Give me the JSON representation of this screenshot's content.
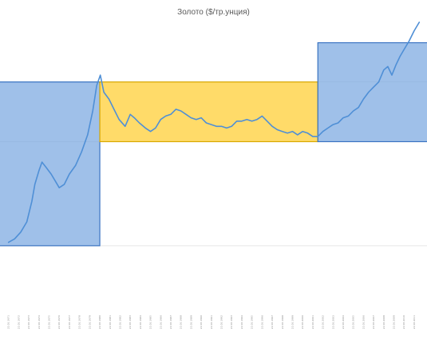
{
  "chart_data": {
    "type": "line",
    "title": "Золото ($/тр.унция)",
    "xlabel": "",
    "ylabel": "",
    "grid": true,
    "legend": "none",
    "colors": {
      "line": "#4f8fd6",
      "band_blue_fill": "#7aa7e0",
      "band_blue_stroke": "#3a73c2",
      "band_yellow_fill": "#ffd54f",
      "band_yellow_stroke": "#d9a800",
      "gridline": "#e6e6e6"
    },
    "x_tick_labels": [
      "22.03.1971",
      "22.03.1972",
      "22.03.1973",
      "22.03.1974",
      "22.03.1975",
      "22.03.1976",
      "22.03.1977",
      "22.03.1978",
      "22.03.1979",
      "22.03.1980",
      "22.03.1981",
      "22.03.1982",
      "22.03.1983",
      "22.03.1984",
      "22.03.1985",
      "22.03.1986",
      "22.03.1987",
      "22.03.1988",
      "22.03.1989",
      "22.03.1990",
      "22.03.1991",
      "22.03.1992",
      "22.03.1993",
      "22.03.1994",
      "22.03.1995",
      "22.03.1996",
      "22.03.1997",
      "22.03.1998",
      "22.03.1999",
      "22.03.2000",
      "22.03.2001",
      "22.03.2002",
      "22.03.2003",
      "22.03.2004",
      "22.03.2005",
      "22.03.2006",
      "22.03.2007",
      "22.03.2008",
      "22.03.2009",
      "22.03.2010",
      "22.03.2011"
    ],
    "series": [
      {
        "values": [
          [
            1971.0,
            0.02
          ],
          [
            1971.6,
            0.04
          ],
          [
            1972.2,
            0.08
          ],
          [
            1972.8,
            0.14
          ],
          [
            1973.3,
            0.26
          ],
          [
            1973.6,
            0.36
          ],
          [
            1974.0,
            0.44
          ],
          [
            1974.3,
            0.49
          ],
          [
            1974.7,
            0.46
          ],
          [
            1975.2,
            0.42
          ],
          [
            1975.6,
            0.38
          ],
          [
            1976.0,
            0.34
          ],
          [
            1976.5,
            0.36
          ],
          [
            1977.0,
            0.42
          ],
          [
            1977.6,
            0.47
          ],
          [
            1978.2,
            0.55
          ],
          [
            1978.8,
            0.65
          ],
          [
            1979.3,
            0.79
          ],
          [
            1979.7,
            0.94
          ],
          [
            1980.05,
            1.0
          ],
          [
            1980.4,
            0.9
          ],
          [
            1980.9,
            0.86
          ],
          [
            1981.4,
            0.8
          ],
          [
            1981.9,
            0.74
          ],
          [
            1982.5,
            0.7
          ],
          [
            1983.0,
            0.77
          ],
          [
            1983.4,
            0.75
          ],
          [
            1983.9,
            0.72
          ],
          [
            1984.5,
            0.69
          ],
          [
            1985.0,
            0.67
          ],
          [
            1985.5,
            0.69
          ],
          [
            1986.0,
            0.74
          ],
          [
            1986.5,
            0.76
          ],
          [
            1987.0,
            0.77
          ],
          [
            1987.5,
            0.8
          ],
          [
            1988.0,
            0.79
          ],
          [
            1988.5,
            0.77
          ],
          [
            1989.0,
            0.75
          ],
          [
            1989.5,
            0.74
          ],
          [
            1990.0,
            0.75
          ],
          [
            1990.5,
            0.72
          ],
          [
            1991.0,
            0.71
          ],
          [
            1991.5,
            0.7
          ],
          [
            1992.0,
            0.7
          ],
          [
            1992.5,
            0.69
          ],
          [
            1993.0,
            0.7
          ],
          [
            1993.5,
            0.73
          ],
          [
            1994.0,
            0.73
          ],
          [
            1994.5,
            0.74
          ],
          [
            1995.0,
            0.73
          ],
          [
            1995.5,
            0.74
          ],
          [
            1996.0,
            0.76
          ],
          [
            1996.5,
            0.73
          ],
          [
            1997.0,
            0.7
          ],
          [
            1997.5,
            0.68
          ],
          [
            1998.0,
            0.67
          ],
          [
            1998.5,
            0.66
          ],
          [
            1999.0,
            0.67
          ],
          [
            1999.5,
            0.65
          ],
          [
            2000.0,
            0.67
          ],
          [
            2000.5,
            0.66
          ],
          [
            2001.0,
            0.64
          ],
          [
            2001.5,
            0.64
          ],
          [
            2002.0,
            0.67
          ],
          [
            2002.5,
            0.69
          ],
          [
            2003.0,
            0.71
          ],
          [
            2003.5,
            0.72
          ],
          [
            2004.0,
            0.75
          ],
          [
            2004.5,
            0.76
          ],
          [
            2005.0,
            0.79
          ],
          [
            2005.5,
            0.81
          ],
          [
            2006.0,
            0.86
          ],
          [
            2006.5,
            0.9
          ],
          [
            2007.0,
            0.93
          ],
          [
            2007.5,
            0.96
          ],
          [
            2008.0,
            1.03
          ],
          [
            2008.4,
            1.05
          ],
          [
            2008.8,
            1.0
          ],
          [
            2009.2,
            1.06
          ],
          [
            2009.6,
            1.11
          ],
          [
            2010.0,
            1.15
          ],
          [
            2010.5,
            1.2
          ],
          [
            2011.0,
            1.26
          ],
          [
            2011.5,
            1.31
          ]
        ]
      }
    ],
    "regions": [
      {
        "style": "blue",
        "x_range": [
          1970.0,
          1980.0
        ],
        "y_range": [
          0.0,
          0.96
        ]
      },
      {
        "style": "yellow",
        "x_range": [
          1980.0,
          2001.5
        ],
        "y_range": [
          0.61,
          0.96
        ]
      },
      {
        "style": "blue",
        "x_range": [
          2001.5,
          2012.5
        ],
        "y_range": [
          0.61,
          1.19
        ]
      }
    ],
    "xlim": [
      1970.0,
      2012.5
    ],
    "ylim": [
      -0.3,
      1.3
    ]
  }
}
